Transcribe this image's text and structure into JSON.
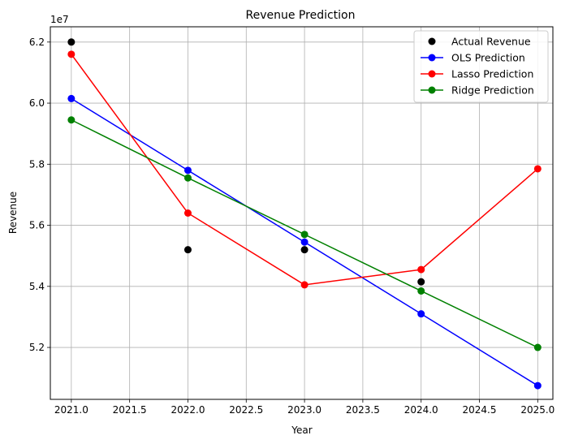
{
  "chart_data": {
    "type": "line",
    "title": "Revenue Prediction",
    "xlabel": "Year",
    "ylabel": "Revenue",
    "y_offset_label": "1e7",
    "xlim": [
      2020.82,
      2025.13
    ],
    "ylim": [
      50.3,
      62.5
    ],
    "x_ticks": [
      2021.0,
      2021.5,
      2022.0,
      2022.5,
      2023.0,
      2023.5,
      2024.0,
      2024.5,
      2025.0
    ],
    "x_tick_labels": [
      "2021.0",
      "2021.5",
      "2022.0",
      "2022.5",
      "2023.0",
      "2023.5",
      "2024.0",
      "2024.5",
      "2025.0"
    ],
    "y_ticks": [
      52,
      54,
      56,
      58,
      60,
      62
    ],
    "y_tick_labels": [
      "5.2",
      "5.4",
      "5.6",
      "5.8",
      "6.0",
      "6.2"
    ],
    "grid": true,
    "legend_position": "top-right",
    "series": [
      {
        "name": "Actual Revenue",
        "color": "#000000",
        "style": "markers",
        "x": [
          2021,
          2022,
          2023,
          2024
        ],
        "y": [
          62.0,
          55.2,
          55.2,
          54.15
        ]
      },
      {
        "name": "OLS Prediction",
        "color": "#0000ff",
        "style": "line-markers",
        "x": [
          2021,
          2022,
          2023,
          2024,
          2025
        ],
        "y": [
          60.15,
          57.8,
          55.45,
          53.1,
          50.75
        ]
      },
      {
        "name": "Lasso Prediction",
        "color": "#ff0000",
        "style": "line-markers",
        "x": [
          2021,
          2022,
          2023,
          2024,
          2025
        ],
        "y": [
          61.6,
          56.4,
          54.05,
          54.55,
          57.85
        ]
      },
      {
        "name": "Ridge Prediction",
        "color": "#008000",
        "style": "line-markers",
        "x": [
          2021,
          2022,
          2023,
          2024,
          2025
        ],
        "y": [
          59.45,
          57.55,
          55.7,
          53.85,
          52.0
        ]
      }
    ]
  }
}
